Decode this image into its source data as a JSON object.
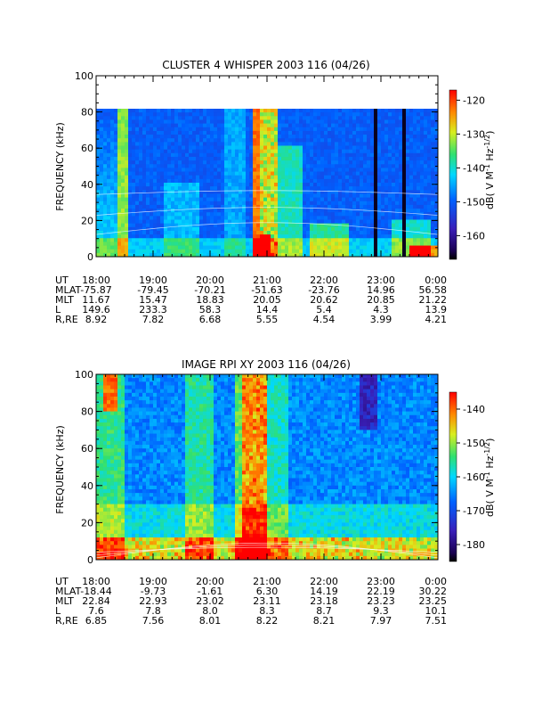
{
  "chart_data": [
    {
      "type": "heatmap",
      "title": "CLUSTER 4 WHISPER 2003 116 (04/26)",
      "ylabel": "FREQUENCY (kHz)",
      "ylim": [
        0,
        100
      ],
      "y_ticks": [
        "0",
        "20",
        "40",
        "60",
        "80",
        "100"
      ],
      "x_ticks": [
        "18:00",
        "19:00",
        "20:00",
        "21:00",
        "22:00",
        "23:00",
        "0:00"
      ],
      "colorbar": {
        "label": "dB( V M",
        "sup1": "-1",
        "mid": " Hz",
        "sup2": "-1/2",
        "end": ")",
        "range": [
          -167,
          -117
        ],
        "ticks": [
          "-120",
          "-130",
          "-140",
          "-150",
          "-160"
        ]
      },
      "ephemeris": [
        {
          "name": "UT",
          "values": [
            "18:00",
            "19:00",
            "20:00",
            "21:00",
            "22:00",
            "23:00",
            "0:00"
          ]
        },
        {
          "name": "MLAT",
          "values": [
            "-75.87",
            "-79.45",
            "-70.21",
            "-51.63",
            "-23.76",
            "14.96",
            "56.58"
          ]
        },
        {
          "name": "MLT",
          "values": [
            "11.67",
            "15.47",
            "18.83",
            "20.05",
            "20.62",
            "20.85",
            "21.22"
          ]
        },
        {
          "name": "L",
          "values": [
            "149.6",
            "233.3",
            "58.3",
            "14.4",
            "5.4",
            "4.3",
            "13.9"
          ]
        },
        {
          "name": "R,RE",
          "values": [
            "8.92",
            "7.82",
            "6.68",
            "5.55",
            "4.54",
            "3.99",
            "4.21"
          ]
        }
      ]
    },
    {
      "type": "heatmap",
      "title": "IMAGE RPI XY 2003 116 (04/26)",
      "ylabel": "FREQUENCY (kHz)",
      "ylim": [
        0,
        100
      ],
      "y_ticks": [
        "0",
        "20",
        "40",
        "60",
        "80",
        "100"
      ],
      "x_ticks": [
        "18:00",
        "19:00",
        "20:00",
        "21:00",
        "22:00",
        "23:00",
        "0:00"
      ],
      "colorbar": {
        "label": "dB( V M",
        "sup1": "-1",
        "mid": " Hz",
        "sup2": "-1/2",
        "end": ")",
        "range": [
          -185,
          -135
        ],
        "ticks": [
          "-140",
          "-150",
          "-160",
          "-170",
          "-180"
        ]
      },
      "ephemeris": [
        {
          "name": "UT",
          "values": [
            "18:00",
            "19:00",
            "20:00",
            "21:00",
            "22:00",
            "23:00",
            "0:00"
          ]
        },
        {
          "name": "MLAT",
          "values": [
            "-18.44",
            "-9.73",
            "-1.61",
            "6.30",
            "14.19",
            "22.19",
            "30.22"
          ]
        },
        {
          "name": "MLT",
          "values": [
            "22.84",
            "22.93",
            "23.02",
            "23.11",
            "23.18",
            "23.23",
            "23.25"
          ]
        },
        {
          "name": "L",
          "values": [
            "7.6",
            "7.8",
            "8.0",
            "8.3",
            "8.7",
            "9.3",
            "10.1"
          ]
        },
        {
          "name": "R,RE",
          "values": [
            "6.85",
            "7.56",
            "8.01",
            "8.22",
            "8.21",
            "7.97",
            "7.51"
          ]
        }
      ]
    }
  ]
}
